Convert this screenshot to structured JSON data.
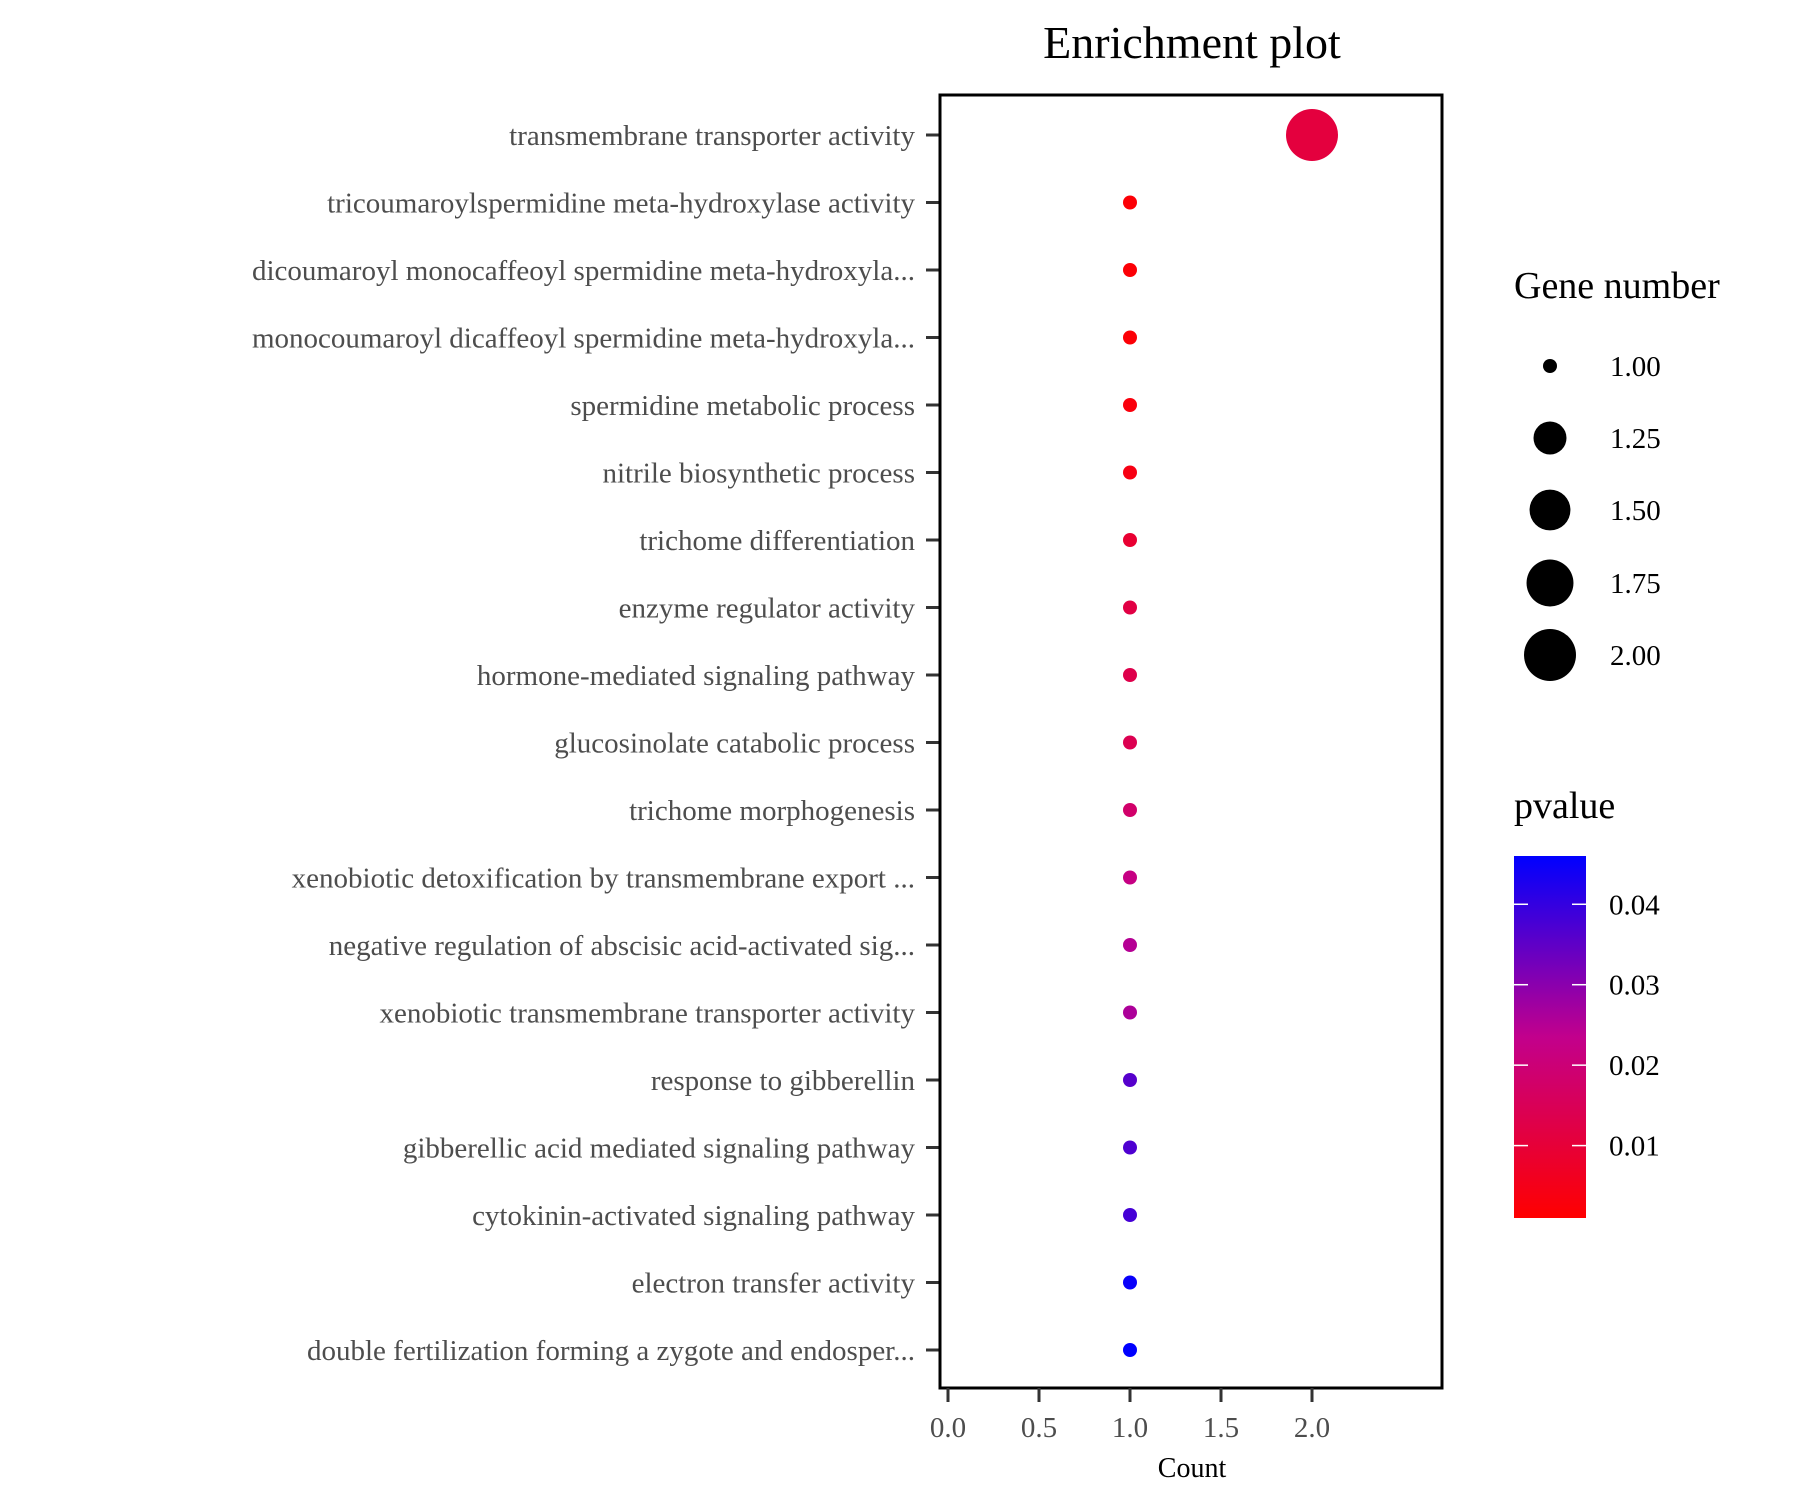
{
  "chart_data": {
    "type": "scatter",
    "title": "Enrichment plot",
    "xlabel": "Count",
    "ylabel": "",
    "xlim": [
      -0.1,
      2.3
    ],
    "xticks": [
      "0.0",
      "0.5",
      "1.0",
      "1.5",
      "2.0"
    ],
    "xtick_values": [
      0,
      0.5,
      1,
      1.5,
      2
    ],
    "grid": false,
    "categories": [
      "transmembrane transporter activity",
      "tricoumaroylspermidine meta-hydroxylase activity",
      "dicoumaroyl monocaffeoyl spermidine meta-hydroxyla...",
      "monocoumaroyl dicaffeoyl spermidine meta-hydroxyla...",
      "spermidine metabolic process",
      "nitrile biosynthetic process",
      "trichome differentiation",
      "enzyme regulator activity",
      "hormone-mediated signaling pathway",
      "glucosinolate catabolic process",
      "trichome morphogenesis",
      "xenobiotic detoxification by transmembrane export ...",
      "negative regulation of abscisic acid-activated sig...",
      "xenobiotic transmembrane transporter activity",
      "response to gibberellin",
      "gibberellic acid mediated signaling pathway",
      "cytokinin-activated signaling pathway",
      "electron transfer activity",
      "double fertilization forming a zygote and endosper..."
    ],
    "count": [
      2,
      1,
      1,
      1,
      1,
      1,
      1,
      1,
      1,
      1,
      1,
      1,
      1,
      1,
      1,
      1,
      1,
      1,
      1
    ],
    "pvalue": [
      0.011,
      0.002,
      0.002,
      0.002,
      0.003,
      0.004,
      0.009,
      0.012,
      0.013,
      0.014,
      0.018,
      0.022,
      0.025,
      0.026,
      0.036,
      0.037,
      0.038,
      0.045,
      0.046
    ],
    "size_legend": {
      "title": "Gene number",
      "values": [
        1.0,
        1.25,
        1.5,
        1.75,
        2.0
      ],
      "labels": [
        "1.00",
        "1.25",
        "1.50",
        "1.75",
        "2.00"
      ]
    },
    "color_legend": {
      "title": "pvalue",
      "range": [
        0.001,
        0.046
      ],
      "ticks": [
        0.01,
        0.02,
        0.03,
        0.04
      ],
      "labels": [
        "0.01",
        "0.02",
        "0.03",
        "0.04"
      ],
      "low_color": "#ff0000",
      "high_color": "#0000ff"
    }
  }
}
